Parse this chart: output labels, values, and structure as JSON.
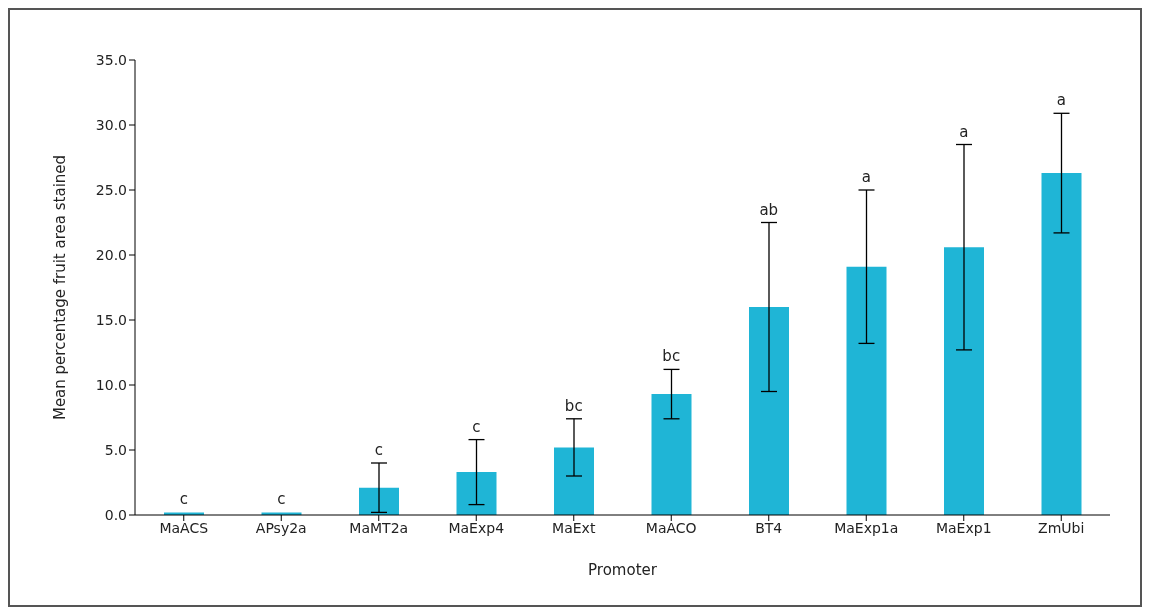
{
  "chart_data": {
    "type": "bar",
    "xlabel": "Promoter",
    "ylabel": "Mean percentage fruit area stained",
    "categories": [
      "MaACS",
      "APsy2a",
      "MaMT2a",
      "MaExp4",
      "MaExt",
      "MaACO",
      "BT4",
      "MaExp1a",
      "MaExp1",
      "ZmUbi"
    ],
    "values": [
      0.2,
      0.2,
      2.1,
      3.3,
      5.2,
      9.3,
      16.0,
      19.1,
      20.6,
      26.3
    ],
    "errors": [
      null,
      null,
      1.9,
      2.5,
      2.2,
      1.9,
      6.5,
      5.9,
      7.9,
      4.6
    ],
    "color": "#1fb5d6",
    "ylim": [
      0,
      35
    ],
    "yticks": [
      {
        "value": 0,
        "label": "0.0"
      },
      {
        "value": 5,
        "label": "5.0"
      },
      {
        "value": 10,
        "label": "10.0"
      },
      {
        "value": 15,
        "label": "15.0"
      },
      {
        "value": 20,
        "label": "20.0"
      },
      {
        "value": 25,
        "label": "25.0"
      },
      {
        "value": 30,
        "label": "30.0"
      },
      {
        "value": 35,
        "label": "35.0"
      }
    ],
    "grid": false,
    "annotations": [
      {
        "text": "c",
        "x": "MaACS",
        "y": 0.2
      },
      {
        "text": "c",
        "x": "APsy2a",
        "y": 0.2
      },
      {
        "text": "c",
        "x": "MaMT2a",
        "y": 4.0
      },
      {
        "text": "c",
        "x": "MaExp4",
        "y": 5.8
      },
      {
        "text": "bc",
        "x": "MaExt",
        "y": 7.4
      },
      {
        "text": "bc",
        "x": "MaACO",
        "y": 11.2
      },
      {
        "text": "ab",
        "x": "BT4",
        "y": 22.5
      },
      {
        "text": "a",
        "x": "MaExp1a",
        "y": 25.0
      },
      {
        "text": "a",
        "x": "MaExp1",
        "y": 28.5
      },
      {
        "text": "a",
        "x": "ZmUbi",
        "y": 30.9
      }
    ]
  }
}
